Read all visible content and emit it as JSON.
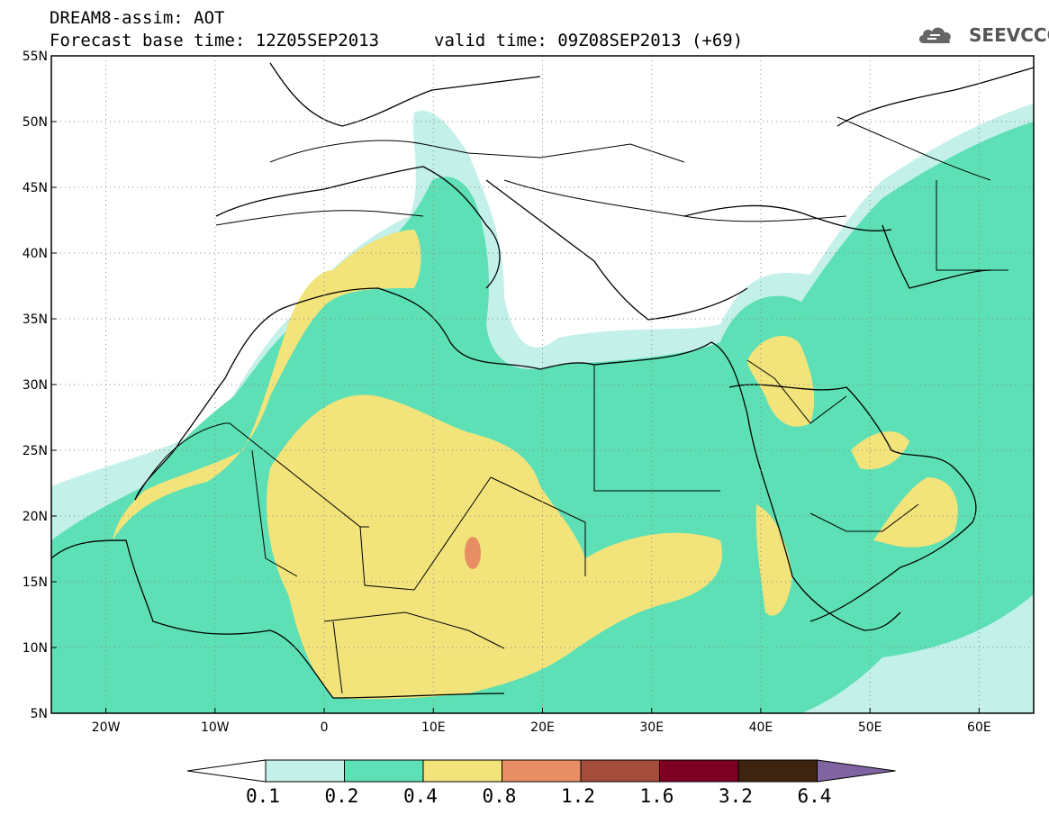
{
  "header": {
    "title_line1": "DREAM8-assim: AOT",
    "title_line2": "Forecast base time: 12Z05SEP2013",
    "valid_time": "valid time: 09Z08SEP2013 (+69)",
    "logo_text": "SEEVCCC"
  },
  "map": {
    "lon_labels": [
      "20W",
      "10W",
      "0",
      "10E",
      "20E",
      "30E",
      "40E",
      "50E",
      "60E"
    ],
    "lat_labels": [
      "55N",
      "50N",
      "45N",
      "40N",
      "35N",
      "30N",
      "25N",
      "20N",
      "15N",
      "10N",
      "5N"
    ],
    "lon_range": [
      -25,
      65
    ],
    "lat_range": [
      5,
      55
    ],
    "grid": "dotted"
  },
  "colorbar": {
    "levels": [
      "0.1",
      "0.2",
      "0.4",
      "0.8",
      "1.2",
      "1.6",
      "3.2",
      "6.4"
    ],
    "colors": [
      "#ffffff",
      "#c4f0ea",
      "#5de0b6",
      "#f2e47a",
      "#e88e64",
      "#a44d3c",
      "#7d0022",
      "#3c2410",
      "#8064a2"
    ]
  }
}
